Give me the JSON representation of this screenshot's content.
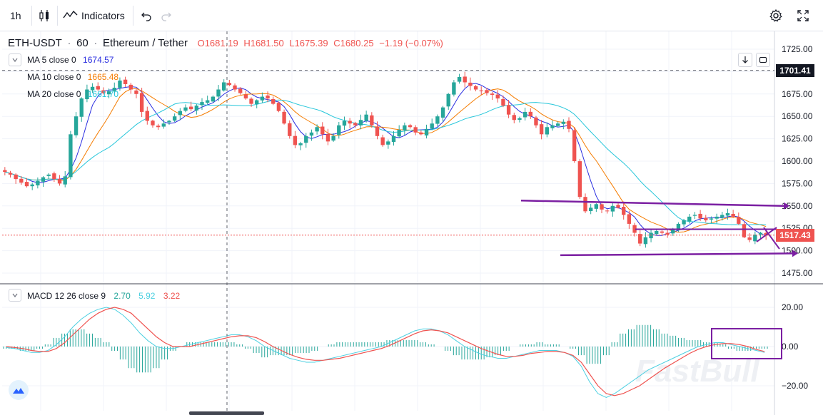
{
  "toolbar": {
    "interval": "1h",
    "indicators_label": "Indicators"
  },
  "symbol": {
    "pair": "ETH-USDT",
    "sep1": "·",
    "interval": "60",
    "sep2": "·",
    "name": "Ethereum / Tether",
    "open": "O1681.19",
    "high": "H1681.50",
    "low": "L1675.39",
    "close": "C1680.25",
    "change": "−1.19 (−0.07%)"
  },
  "ma": [
    {
      "label": "MA 5 close 0",
      "value": "1674.57",
      "color": "#2a2ee0"
    },
    {
      "label": "MA 10 close 0",
      "value": "1665.48",
      "color": "#f57c00"
    },
    {
      "label": "MA 20 close 0",
      "value": "1661.70",
      "color": "#26c6da"
    }
  ],
  "macd": {
    "label": "MACD 12 26 close 9",
    "v1": "2.70",
    "v2": "5.92",
    "v3": "3.22",
    "colors": {
      "v1": "#26a69a",
      "v2": "#4dd0e1",
      "v3": "#ef5350"
    }
  },
  "price_axis": [
    "1725.00",
    "1700.00",
    "1675.00",
    "1650.00",
    "1625.00",
    "1600.00",
    "1575.00",
    "1550.00",
    "1525.00",
    "1500.00",
    "1475.00"
  ],
  "price_axis_values": [
    1725,
    1700,
    1675,
    1650,
    1625,
    1600,
    1575,
    1550,
    1525,
    1500,
    1475
  ],
  "macd_axis": [
    "20.00",
    "0.00",
    "−20.00"
  ],
  "macd_axis_values": [
    20,
    0,
    -20
  ],
  "crosshair_price": "1701.41",
  "crosshair_price_value": 1701.41,
  "last_price": "1517.43",
  "last_price_value": 1517.43,
  "watermark": "FastBull",
  "colors": {
    "up": "#26a69a",
    "down": "#ef5350",
    "annotation": "#7b1fa2",
    "last_price": "#ef5350",
    "crosshair_tag": "#131722"
  },
  "chart_data": {
    "type": "candlestick",
    "symbol": "ETH-USDT",
    "interval": "60",
    "price_range": [
      1465,
      1745
    ],
    "macd_range": [
      -30,
      28
    ],
    "close_series": [
      1588,
      1585,
      1580,
      1576,
      1572,
      1574,
      1578,
      1582,
      1585,
      1580,
      1575,
      1583,
      1630,
      1650,
      1670,
      1680,
      1683,
      1680,
      1676,
      1678,
      1682,
      1690,
      1686,
      1680,
      1675,
      1655,
      1645,
      1640,
      1638,
      1642,
      1645,
      1650,
      1656,
      1660,
      1658,
      1662,
      1666,
      1668,
      1672,
      1680,
      1688,
      1685,
      1680,
      1676,
      1670,
      1664,
      1668,
      1672,
      1670,
      1664,
      1656,
      1642,
      1628,
      1618,
      1620,
      1628,
      1632,
      1638,
      1630,
      1622,
      1628,
      1640,
      1645,
      1642,
      1640,
      1646,
      1652,
      1640,
      1628,
      1618,
      1622,
      1628,
      1635,
      1640,
      1638,
      1632,
      1630,
      1636,
      1642,
      1650,
      1660,
      1675,
      1688,
      1694,
      1688,
      1684,
      1680,
      1678,
      1676,
      1674,
      1670,
      1662,
      1652,
      1646,
      1648,
      1655,
      1650,
      1640,
      1630,
      1638,
      1640,
      1642,
      1644,
      1636,
      1600,
      1560,
      1544,
      1548,
      1552,
      1546,
      1544,
      1550,
      1548,
      1540,
      1530,
      1520,
      1508,
      1515,
      1520,
      1522,
      1520,
      1518,
      1524,
      1530,
      1534,
      1538,
      1540,
      1536,
      1534,
      1536,
      1538,
      1540,
      1542,
      1538,
      1530,
      1515,
      1512,
      1518,
      1520,
      1517
    ],
    "macd_line": [
      -0.5,
      -1,
      -2,
      -3,
      -3,
      -2,
      1,
      5,
      10,
      14,
      17,
      19,
      20,
      19,
      16,
      12,
      7,
      3,
      0,
      -1,
      -1,
      0,
      1,
      2,
      3,
      4,
      5,
      6,
      6,
      5,
      3,
      0,
      -2,
      -4,
      -6,
      -7,
      -8,
      -8,
      -7,
      -6,
      -5,
      -4,
      -3,
      -2,
      -1,
      0,
      2,
      4,
      6,
      8,
      9,
      9,
      8,
      6,
      3,
      0,
      -2,
      -4,
      -5,
      -6,
      -6,
      -5,
      -4,
      -3,
      -2,
      -2,
      -2,
      -3,
      -5,
      -10,
      -18,
      -24,
      -26,
      -24,
      -21,
      -18,
      -15,
      -12,
      -10,
      -8,
      -6,
      -4,
      -2,
      0,
      1,
      2,
      2,
      1,
      0,
      -1,
      -2,
      -3
    ],
    "signal_line": [
      0,
      -0.5,
      -1,
      -2,
      -2.5,
      -2.5,
      -1,
      2,
      6,
      10,
      14,
      17,
      19,
      20,
      19,
      17,
      13,
      9,
      5,
      2,
      0,
      0,
      0,
      1,
      2,
      3,
      4,
      5,
      5.5,
      5.5,
      4.5,
      2.5,
      0,
      -2,
      -4,
      -5.5,
      -6.5,
      -7,
      -7,
      -6.5,
      -6,
      -5,
      -4,
      -3,
      -2,
      -1,
      0.5,
      2.5,
      4.5,
      6.5,
      8,
      8.5,
      8,
      7,
      5,
      3,
      1,
      -1,
      -2.5,
      -4,
      -5,
      -5,
      -4.5,
      -3.5,
      -3,
      -2.5,
      -2.5,
      -3,
      -4.5,
      -8,
      -14,
      -20,
      -24,
      -25,
      -24,
      -22,
      -20,
      -17,
      -14,
      -11,
      -8.5,
      -6,
      -3.5,
      -1.5,
      0,
      1,
      1.5,
      1.5,
      1,
      0,
      -1.5,
      -2.5
    ],
    "annotations": [
      "resistance-line-1550",
      "support-line-1497",
      "range-box-1525",
      "macd-highlight-box"
    ]
  }
}
